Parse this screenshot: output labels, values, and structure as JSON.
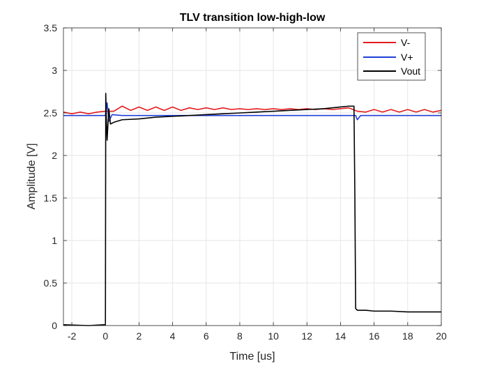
{
  "chart_data": {
    "type": "line",
    "title": "TLV transition low-high-low",
    "xlabel": "Time [us]",
    "ylabel": "Amplitude [V]",
    "xlim": [
      -2.5,
      20
    ],
    "ylim": [
      0,
      3.5
    ],
    "xticks": [
      -2,
      0,
      2,
      4,
      6,
      8,
      10,
      12,
      14,
      16,
      18,
      20
    ],
    "yticks": [
      0,
      0.5,
      1,
      1.5,
      2,
      2.5,
      3,
      3.5
    ],
    "xtick_labels": [
      "-2",
      "0",
      "2",
      "4",
      "6",
      "8",
      "10",
      "12",
      "14",
      "16",
      "18",
      "20"
    ],
    "ytick_labels": [
      "0",
      "0.5",
      "1",
      "1.5",
      "2",
      "2.5",
      "3",
      "3.5"
    ],
    "grid": true,
    "legend_position": "top-right",
    "series": [
      {
        "name": "V-",
        "color": "#e31a1c",
        "x": [
          -2.5,
          -2.0,
          -1.5,
          -1.0,
          -0.5,
          0.0,
          0.5,
          1.0,
          1.5,
          2.0,
          2.5,
          3.0,
          3.5,
          4.0,
          4.5,
          5.0,
          5.5,
          6.0,
          6.5,
          7.0,
          7.5,
          8.0,
          8.5,
          9.0,
          9.5,
          10.0,
          10.5,
          11.0,
          11.5,
          12.0,
          12.5,
          13.0,
          13.5,
          14.0,
          14.5,
          15.0,
          15.5,
          16.0,
          16.5,
          17.0,
          17.5,
          18.0,
          18.5,
          19.0,
          19.5,
          20.0
        ],
        "y": [
          2.51,
          2.49,
          2.51,
          2.49,
          2.51,
          2.52,
          2.52,
          2.58,
          2.53,
          2.57,
          2.53,
          2.57,
          2.53,
          2.57,
          2.53,
          2.56,
          2.54,
          2.56,
          2.54,
          2.56,
          2.54,
          2.55,
          2.54,
          2.55,
          2.54,
          2.55,
          2.54,
          2.55,
          2.54,
          2.55,
          2.54,
          2.55,
          2.54,
          2.55,
          2.56,
          2.52,
          2.51,
          2.54,
          2.51,
          2.54,
          2.51,
          2.54,
          2.51,
          2.54,
          2.51,
          2.53
        ]
      },
      {
        "name": "V+",
        "color": "#1f3fd6",
        "x": [
          -2.5,
          -1.0,
          0.0,
          0.1,
          0.2,
          0.4,
          1.0,
          2.0,
          4.0,
          6.0,
          8.0,
          10.0,
          12.0,
          14.0,
          14.9,
          15.0,
          15.2,
          16.0,
          18.0,
          20.0
        ],
        "y": [
          2.47,
          2.47,
          2.47,
          2.62,
          2.4,
          2.48,
          2.47,
          2.47,
          2.47,
          2.47,
          2.47,
          2.47,
          2.47,
          2.47,
          2.47,
          2.42,
          2.47,
          2.47,
          2.47,
          2.47
        ]
      },
      {
        "name": "Vout",
        "color": "#000000",
        "x": [
          -2.5,
          -1.0,
          -0.1,
          0.0,
          0.02,
          0.05,
          0.1,
          0.2,
          0.3,
          0.5,
          1.0,
          2.0,
          3.0,
          4.0,
          5.0,
          6.0,
          7.0,
          8.0,
          9.0,
          10.0,
          11.0,
          12.0,
          13.0,
          14.0,
          14.5,
          14.8,
          14.85,
          14.9,
          15.0,
          15.5,
          16.0,
          17.0,
          18.0,
          19.0,
          20.0
        ],
        "y": [
          0.01,
          0.0,
          0.01,
          0.01,
          2.73,
          2.45,
          2.18,
          2.55,
          2.37,
          2.39,
          2.42,
          2.43,
          2.45,
          2.46,
          2.47,
          2.48,
          2.49,
          2.5,
          2.51,
          2.52,
          2.53,
          2.54,
          2.55,
          2.57,
          2.58,
          2.58,
          1.6,
          0.2,
          0.18,
          0.18,
          0.17,
          0.17,
          0.16,
          0.16,
          0.16
        ]
      }
    ]
  }
}
